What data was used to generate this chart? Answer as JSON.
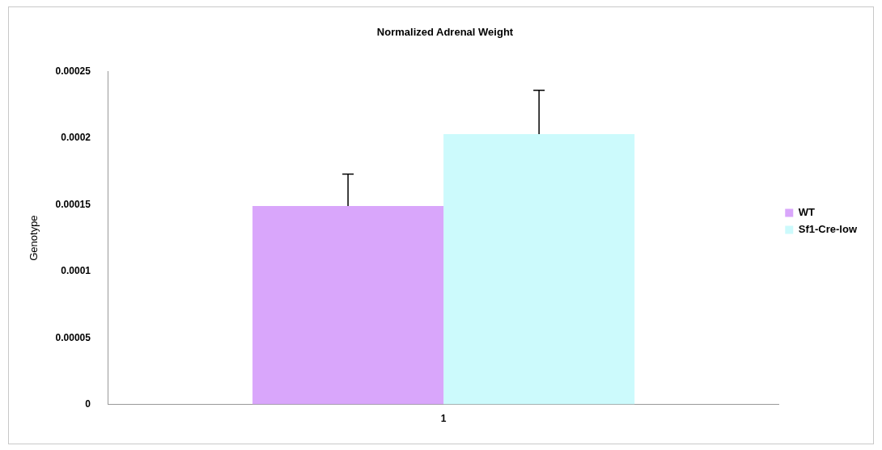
{
  "chart_data": {
    "type": "bar",
    "title": "Normalized Adrenal Weight",
    "ylabel": "Genotype",
    "categories": [
      "1"
    ],
    "series": [
      {
        "name": "WT",
        "color": "#d9a6fb",
        "values": [
          0.000149
        ],
        "errors": [
          [
            0.000149,
            0.000173
          ]
        ]
      },
      {
        "name": "Sf1-Cre-low",
        "color": "#ccfafc",
        "values": [
          0.000203
        ],
        "errors": [
          [
            0.000203,
            0.000236
          ]
        ]
      }
    ],
    "ylim": [
      0,
      0.00025
    ],
    "yticks": [
      0,
      {
        "value": 5e-05,
        "label": "0.00005"
      },
      0.0001,
      0.00015,
      0.0002,
      0.00025
    ],
    "grid": false,
    "legend": "right"
  }
}
